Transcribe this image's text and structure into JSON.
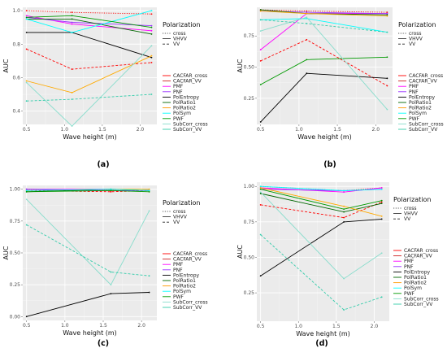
{
  "legend": {
    "polarization_title": "Polarization",
    "polarization_items": [
      {
        "label": "cross",
        "dash": "1.2,1.6"
      },
      {
        "label": "VHVV",
        "dash": ""
      },
      {
        "label": "VV",
        "dash": "3,2"
      }
    ],
    "method_items": [
      {
        "label": "CACFAR_cross",
        "color": "#ff0000"
      },
      {
        "label": "CACFAR_VV",
        "color": "#cc2222"
      },
      {
        "label": "PMF",
        "color": "#ff00ff"
      },
      {
        "label": "PNF",
        "color": "#9933ff"
      },
      {
        "label": "PolEntropy",
        "color": "#000000"
      },
      {
        "label": "PolRatio1",
        "color": "#006600"
      },
      {
        "label": "PolRatio2",
        "color": "#ff9900"
      },
      {
        "label": "PolSym",
        "color": "#00ffff"
      },
      {
        "label": "PWF",
        "color": "#009900"
      },
      {
        "label": "SubCorr_cross",
        "color": "#88ddcc"
      },
      {
        "label": "SubCorr_VV",
        "color": "#33ccaa"
      }
    ]
  },
  "chart_data": [
    {
      "type": "line",
      "caption": "(a)",
      "xlabel": "Wave height (m)",
      "ylabel": "AUC",
      "xlim": [
        0.45,
        2.22
      ],
      "ylim": [
        0.32,
        1.02
      ],
      "xticks": [
        0.5,
        1.0,
        1.5,
        2.0
      ],
      "yticks": [
        0.4,
        0.6,
        0.8,
        1.0
      ],
      "ytick_labels": [
        "0.4",
        "0.6",
        "0.8",
        "1.0"
      ],
      "x": [
        0.5,
        1.1,
        2.15
      ],
      "series": [
        {
          "name": "CACFAR_cross",
          "color": "#ff0000",
          "dash": "1.2,1.6",
          "values": [
            1.0,
            0.99,
            0.98
          ]
        },
        {
          "name": "CACFAR_VV",
          "color": "#ff0000",
          "dash": "3,2",
          "values": [
            0.77,
            0.65,
            0.69
          ]
        },
        {
          "name": "PMF",
          "color": "#ff00ff",
          "dash": "",
          "values": [
            0.97,
            0.92,
            0.88
          ]
        },
        {
          "name": "PNF",
          "color": "#9933ff",
          "dash": "",
          "values": [
            0.96,
            0.93,
            0.91
          ]
        },
        {
          "name": "PolEntropy",
          "color": "#000000",
          "dash": "",
          "values": [
            0.87,
            0.87,
            0.72
          ]
        },
        {
          "name": "PolRatio1",
          "color": "#006600",
          "dash": "",
          "values": [
            0.95,
            0.95,
            0.86
          ]
        },
        {
          "name": "PolRatio2",
          "color": "#ffaa00",
          "dash": "",
          "values": [
            0.58,
            0.51,
            0.73
          ]
        },
        {
          "name": "PolSym",
          "color": "#00ffff",
          "dash": "",
          "values": [
            0.95,
            0.87,
            1.0
          ]
        },
        {
          "name": "PWF",
          "color": "#009900",
          "dash": "",
          "values": [
            0.96,
            0.97,
            0.9
          ]
        },
        {
          "name": "SubCorr_cross",
          "color": "#88ddcc",
          "dash": "",
          "values": [
            0.57,
            0.31,
            0.79
          ]
        },
        {
          "name": "SubCorr_VV",
          "color": "#33ccaa",
          "dash": "3,2",
          "values": [
            0.46,
            0.47,
            0.5
          ]
        }
      ]
    },
    {
      "type": "line",
      "caption": "(b)",
      "xlabel": "Wave height (m)",
      "ylabel": "AUC",
      "xlim": [
        0.45,
        2.22
      ],
      "ylim": [
        0.04,
        0.98
      ],
      "xticks": [
        0.5,
        1.0,
        1.5,
        2.0
      ],
      "yticks": [
        0.25,
        0.5,
        0.75
      ],
      "ytick_labels": [
        "0.25",
        "0.50",
        "0.75"
      ],
      "x": [
        0.5,
        1.1,
        2.15
      ],
      "series": [
        {
          "name": "CACFAR_cross",
          "color": "#ff0000",
          "dash": "1.2,1.6",
          "values": [
            0.96,
            0.95,
            0.94
          ]
        },
        {
          "name": "CACFAR_VV",
          "color": "#ff0000",
          "dash": "3,2",
          "values": [
            0.55,
            0.72,
            0.35
          ]
        },
        {
          "name": "PMF",
          "color": "#ff00ff",
          "dash": "",
          "values": [
            0.64,
            0.93,
            0.93
          ]
        },
        {
          "name": "PNF",
          "color": "#9933ff",
          "dash": "",
          "values": [
            0.95,
            0.94,
            0.93
          ]
        },
        {
          "name": "PolEntropy",
          "color": "#000000",
          "dash": "",
          "values": [
            0.06,
            0.45,
            0.41
          ]
        },
        {
          "name": "PolRatio1",
          "color": "#006600",
          "dash": "",
          "values": [
            0.96,
            0.93,
            0.92
          ]
        },
        {
          "name": "PolRatio2",
          "color": "#ffaa00",
          "dash": "",
          "values": [
            0.95,
            0.93,
            0.91
          ]
        },
        {
          "name": "PolSym",
          "color": "#00ffff",
          "dash": "",
          "values": [
            0.88,
            0.89,
            0.78
          ]
        },
        {
          "name": "PWF",
          "color": "#009900",
          "dash": "",
          "values": [
            0.36,
            0.56,
            0.58
          ]
        },
        {
          "name": "SubCorr_cross",
          "color": "#88ddcc",
          "dash": "",
          "values": [
            0.79,
            0.9,
            0.16
          ]
        },
        {
          "name": "SubCorr_VV",
          "color": "#33ccaa",
          "dash": "3,2",
          "values": [
            0.88,
            0.85,
            0.78
          ]
        }
      ]
    },
    {
      "type": "line",
      "caption": "(c)",
      "xlabel": "Wave height (m)",
      "ylabel": "AUC",
      "xlim": [
        0.45,
        2.2
      ],
      "ylim": [
        -0.03,
        1.03
      ],
      "xticks": [
        0.5,
        1.0,
        1.5,
        2.0
      ],
      "yticks": [
        0.0,
        0.25,
        0.5,
        0.75,
        1.0
      ],
      "ytick_labels": [
        "0.00",
        "0.25",
        "0.50",
        "0.75",
        "1.00"
      ],
      "x": [
        0.5,
        1.6,
        2.1
      ],
      "series": [
        {
          "name": "CACFAR_cross",
          "color": "#ff0000",
          "dash": "1.2,1.6",
          "values": [
            1.0,
            0.99,
            0.99
          ]
        },
        {
          "name": "CACFAR_VV",
          "color": "#ff0000",
          "dash": "3,2",
          "values": [
            0.99,
            0.98,
            0.99
          ]
        },
        {
          "name": "PMF",
          "color": "#ff00ff",
          "dash": "",
          "values": [
            1.0,
            1.0,
            0.99
          ]
        },
        {
          "name": "PNF",
          "color": "#9933ff",
          "dash": "",
          "values": [
            1.0,
            0.99,
            0.99
          ]
        },
        {
          "name": "PolEntropy",
          "color": "#000000",
          "dash": "",
          "values": [
            0.0,
            0.18,
            0.19
          ]
        },
        {
          "name": "PolRatio1",
          "color": "#006600",
          "dash": "",
          "values": [
            0.98,
            1.0,
            0.99
          ]
        },
        {
          "name": "PolRatio2",
          "color": "#ffaa00",
          "dash": "",
          "values": [
            0.99,
            1.0,
            1.0
          ]
        },
        {
          "name": "PolSym",
          "color": "#00ffff",
          "dash": "",
          "values": [
            0.99,
            1.0,
            0.99
          ]
        },
        {
          "name": "PWF",
          "color": "#009900",
          "dash": "",
          "values": [
            0.98,
            0.99,
            0.98
          ]
        },
        {
          "name": "SubCorr_cross",
          "color": "#88ddcc",
          "dash": "",
          "values": [
            0.92,
            0.25,
            0.83
          ]
        },
        {
          "name": "SubCorr_VV",
          "color": "#33ccaa",
          "dash": "3,2",
          "values": [
            0.72,
            0.35,
            0.32
          ]
        }
      ]
    },
    {
      "type": "line",
      "caption": "(d)",
      "xlabel": "Wave height (m)",
      "ylabel": "AUC",
      "xlim": [
        0.45,
        2.2
      ],
      "ylim": [
        0.05,
        1.03
      ],
      "xticks": [
        0.5,
        1.0,
        1.5,
        2.0
      ],
      "yticks": [
        0.25,
        0.5,
        0.75,
        1.0
      ],
      "ytick_labels": [
        "0.25",
        "0.50",
        "0.75",
        "1.00"
      ],
      "x": [
        0.5,
        1.6,
        2.1
      ],
      "series": [
        {
          "name": "CACFAR_cross",
          "color": "#ff0000",
          "dash": "1.2,1.6",
          "values": [
            1.0,
            0.97,
            0.99
          ]
        },
        {
          "name": "CACFAR_VV",
          "color": "#ff0000",
          "dash": "3,2",
          "values": [
            0.87,
            0.78,
            0.89
          ]
        },
        {
          "name": "PMF",
          "color": "#ff00ff",
          "dash": "",
          "values": [
            0.99,
            0.96,
            0.99
          ]
        },
        {
          "name": "PNF",
          "color": "#9933ff",
          "dash": "",
          "values": [
            0.98,
            0.97,
            0.98
          ]
        },
        {
          "name": "PolEntropy",
          "color": "#000000",
          "dash": "",
          "values": [
            0.37,
            0.75,
            0.77
          ]
        },
        {
          "name": "PolRatio1",
          "color": "#006600",
          "dash": "",
          "values": [
            0.95,
            0.82,
            0.88
          ]
        },
        {
          "name": "PolRatio2",
          "color": "#ffaa00",
          "dash": "",
          "values": [
            0.99,
            0.86,
            0.79
          ]
        },
        {
          "name": "PolSym",
          "color": "#00ffff",
          "dash": "",
          "values": [
            1.0,
            0.97,
            0.98
          ]
        },
        {
          "name": "PWF",
          "color": "#009900",
          "dash": "",
          "values": [
            0.98,
            0.84,
            0.9
          ]
        },
        {
          "name": "SubCorr_cross",
          "color": "#88ddcc",
          "dash": "",
          "values": [
            0.96,
            0.35,
            0.53
          ]
        },
        {
          "name": "SubCorr_VV",
          "color": "#33ccaa",
          "dash": "3,2",
          "values": [
            0.66,
            0.13,
            0.22
          ]
        }
      ]
    }
  ]
}
